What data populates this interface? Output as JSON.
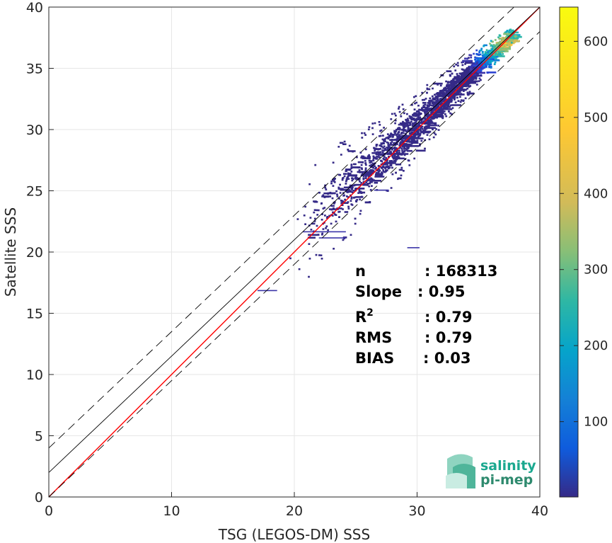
{
  "chart_data": {
    "type": "heatmap",
    "title": "",
    "xlabel": "TSG (LEGOS-DM) SSS",
    "ylabel": "Satellite SSS",
    "xlim": [
      0,
      40
    ],
    "ylim": [
      0,
      40
    ],
    "xticks": [
      0,
      10,
      20,
      30,
      40
    ],
    "yticks": [
      0,
      5,
      10,
      15,
      20,
      25,
      30,
      35,
      40
    ],
    "grid": true,
    "colorbar": {
      "colormap": "parula",
      "range": [
        1,
        645
      ],
      "ticks": [
        100,
        200,
        300,
        400,
        500,
        600
      ]
    },
    "reference_lines": [
      {
        "kind": "identity",
        "slope": 1,
        "intercept": 0,
        "color": "#ff0000",
        "style": "solid"
      },
      {
        "kind": "offset",
        "slope": 0.95,
        "intercept": 2,
        "color": "#000000",
        "style": "solid"
      },
      {
        "kind": "offset-upper",
        "slope": 0.95,
        "intercept": 4,
        "color": "#000000",
        "style": "dashed"
      },
      {
        "kind": "offset-lower",
        "slope": 0.95,
        "intercept": 0,
        "color": "#000000",
        "style": "dashed"
      }
    ],
    "density": {
      "description_note": "",
      "ridge": [
        [
          20,
          21.4
        ],
        [
          24,
          25
        ],
        [
          28,
          28.6
        ],
        [
          31,
          31.5
        ],
        [
          33,
          33.5
        ],
        [
          35,
          35.3
        ],
        [
          36.5,
          36.7
        ],
        [
          37.5,
          37.6
        ]
      ],
      "peak": [
        37,
        37
      ],
      "peak_count": 645
    },
    "stats": [
      {
        "label": "n",
        "value": ": 168313"
      },
      {
        "label": "Slope",
        "value": ": 0.95"
      },
      {
        "label": "R",
        "sup": "2",
        "value": ": 0.79"
      },
      {
        "label": "RMS",
        "value": ": 0.79"
      },
      {
        "label": "BIAS",
        "value": ": 0.03"
      }
    ]
  },
  "logo": {
    "line1": "salinity",
    "line2": "pi-mep",
    "color_primary": "#1aa88f",
    "color_secondary": "#2e8a6e"
  }
}
